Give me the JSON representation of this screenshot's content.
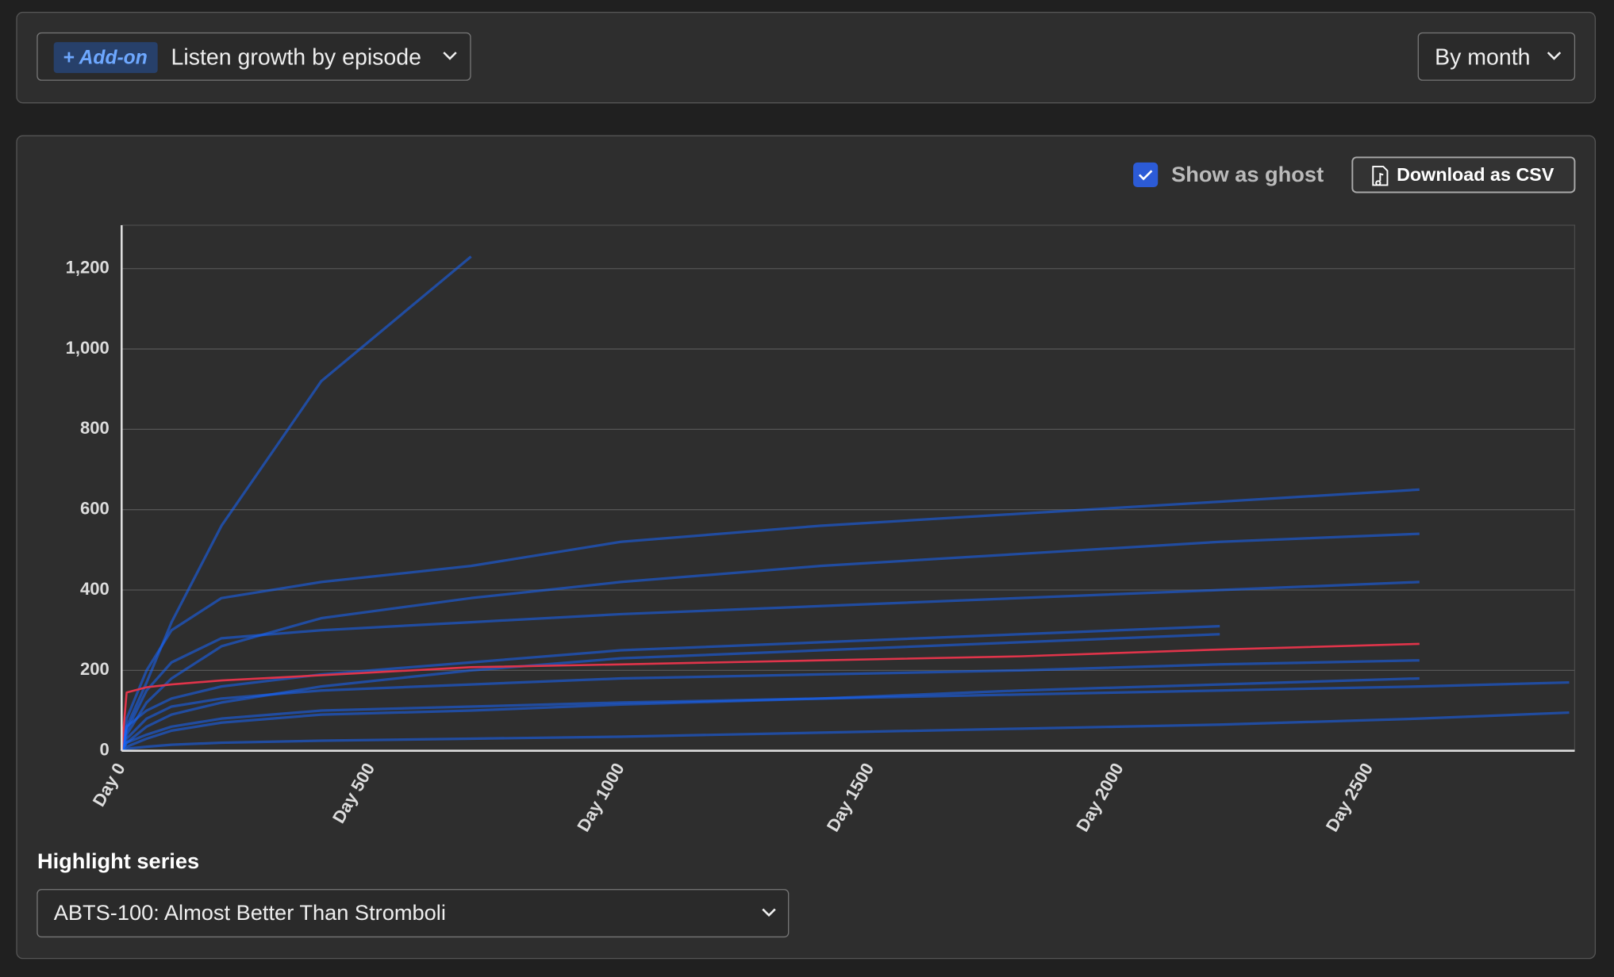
{
  "controls": {
    "addon_badge": "+ Add-on",
    "report": "Listen growth by episode",
    "period": "By month",
    "show_as_ghost": {
      "label": "Show as ghost",
      "checked": true
    },
    "download": "Download as CSV",
    "highlight_label": "Highlight series",
    "highlight_value": "ABTS-100: Almost Better Than Stromboli"
  },
  "chart_data": {
    "type": "line",
    "x": [
      0,
      10,
      50,
      100,
      200,
      400,
      700,
      1000,
      1400,
      1800,
      2200,
      2600,
      2900
    ],
    "xlim": [
      0,
      2911
    ],
    "ylim": [
      0,
      1308
    ],
    "xticks": [
      {
        "value": 0,
        "label": "Day 0"
      },
      {
        "value": 500,
        "label": "Day 500"
      },
      {
        "value": 1000,
        "label": "Day 1000"
      },
      {
        "value": 1500,
        "label": "Day 1500"
      },
      {
        "value": 2000,
        "label": "Day 2000"
      },
      {
        "value": 2500,
        "label": "Day 2500"
      }
    ],
    "yticks": [
      0,
      200,
      400,
      600,
      800,
      {
        "value": 1000,
        "label": "1,000"
      },
      {
        "value": 1200,
        "label": "1,200"
      }
    ],
    "grid": true,
    "series": [
      {
        "color": "#1766ff",
        "values": [
          0,
          60,
          170,
          320,
          560,
          920,
          1230,
          null,
          null,
          null,
          null,
          null,
          null
        ]
      },
      {
        "color": "#1766ff",
        "values": [
          0,
          20,
          60,
          90,
          120,
          160,
          200,
          230,
          250,
          270,
          290,
          null,
          null
        ]
      },
      {
        "color": "#1766ff",
        "values": [
          0,
          40,
          120,
          180,
          260,
          330,
          380,
          420,
          460,
          490,
          520,
          540,
          null
        ]
      },
      {
        "color": "#1766ff",
        "values": [
          0,
          80,
          200,
          300,
          380,
          420,
          460,
          520,
          560,
          590,
          620,
          650,
          null
        ]
      },
      {
        "color": "#1766ff",
        "values": [
          0,
          5,
          10,
          15,
          20,
          25,
          30,
          35,
          45,
          55,
          65,
          80,
          95
        ]
      },
      {
        "color": "#1766ff",
        "values": [
          0,
          30,
          80,
          110,
          130,
          150,
          165,
          180,
          190,
          200,
          215,
          225,
          null
        ]
      },
      {
        "color": "#1766ff",
        "values": [
          0,
          50,
          150,
          220,
          280,
          300,
          320,
          340,
          360,
          380,
          400,
          420,
          null
        ]
      },
      {
        "color": "#1766ff",
        "values": [
          0,
          10,
          30,
          50,
          70,
          90,
          100,
          115,
          130,
          150,
          165,
          180,
          null
        ]
      },
      {
        "color": "#1766ff",
        "values": [
          0,
          60,
          100,
          130,
          160,
          190,
          220,
          250,
          270,
          290,
          310,
          null,
          null
        ]
      },
      {
        "color": "#1766ff",
        "values": [
          0,
          20,
          40,
          60,
          80,
          100,
          110,
          120,
          130,
          140,
          150,
          160,
          170
        ]
      },
      {
        "color": "#e0344a",
        "values": [
          0,
          145,
          158,
          165,
          175,
          188,
          208,
          215,
          225,
          235,
          252,
          266,
          null
        ]
      }
    ]
  }
}
